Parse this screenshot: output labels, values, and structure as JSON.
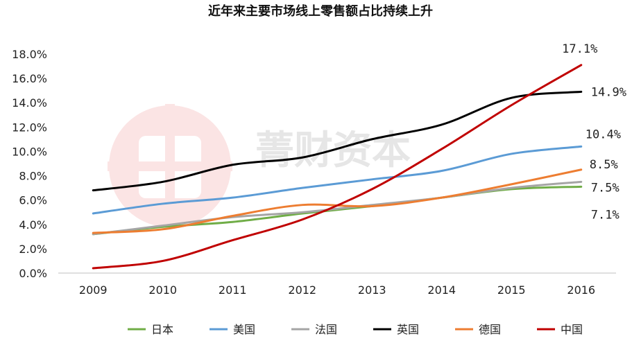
{
  "chart_data": {
    "type": "line",
    "title": "近年来主要市场线上零售额占比持续上升",
    "categories": [
      "2009",
      "2010",
      "2011",
      "2012",
      "2013",
      "2014",
      "2015",
      "2016"
    ],
    "y_ticks": [
      "0.0%",
      "2.0%",
      "4.0%",
      "6.0%",
      "8.0%",
      "10.0%",
      "12.0%",
      "14.0%",
      "16.0%",
      "18.0%"
    ],
    "ylim": [
      0,
      18
    ],
    "legend_position": "bottom",
    "series": [
      {
        "name": "日本",
        "color": "#70ad47",
        "values": [
          3.2,
          3.8,
          4.2,
          4.9,
          5.5,
          6.2,
          6.9,
          7.1
        ],
        "end_label": "7.1%"
      },
      {
        "name": "美国",
        "color": "#5b9bd5",
        "values": [
          4.9,
          5.7,
          6.2,
          7.0,
          7.7,
          8.4,
          9.8,
          10.4
        ],
        "end_label": "10.4%"
      },
      {
        "name": "法国",
        "color": "#a5a5a5",
        "values": [
          3.2,
          3.9,
          4.6,
          5.0,
          5.6,
          6.2,
          7.0,
          7.5
        ],
        "end_label": "7.5%"
      },
      {
        "name": "英国",
        "color": "#000000",
        "values": [
          6.8,
          7.5,
          8.9,
          9.5,
          11.0,
          12.2,
          14.4,
          14.9
        ],
        "end_label": "14.9%"
      },
      {
        "name": "德国",
        "color": "#ed7d31",
        "values": [
          3.3,
          3.6,
          4.7,
          5.6,
          5.5,
          6.2,
          7.3,
          8.5
        ],
        "end_label": "8.5%"
      },
      {
        "name": "中国",
        "color": "#c00000",
        "values": [
          0.4,
          1.0,
          2.7,
          4.4,
          6.9,
          10.2,
          13.8,
          17.1
        ],
        "end_label": "17.1%"
      }
    ]
  },
  "watermark": {
    "text": "菁财资本",
    "color": "#f3c8c8"
  }
}
